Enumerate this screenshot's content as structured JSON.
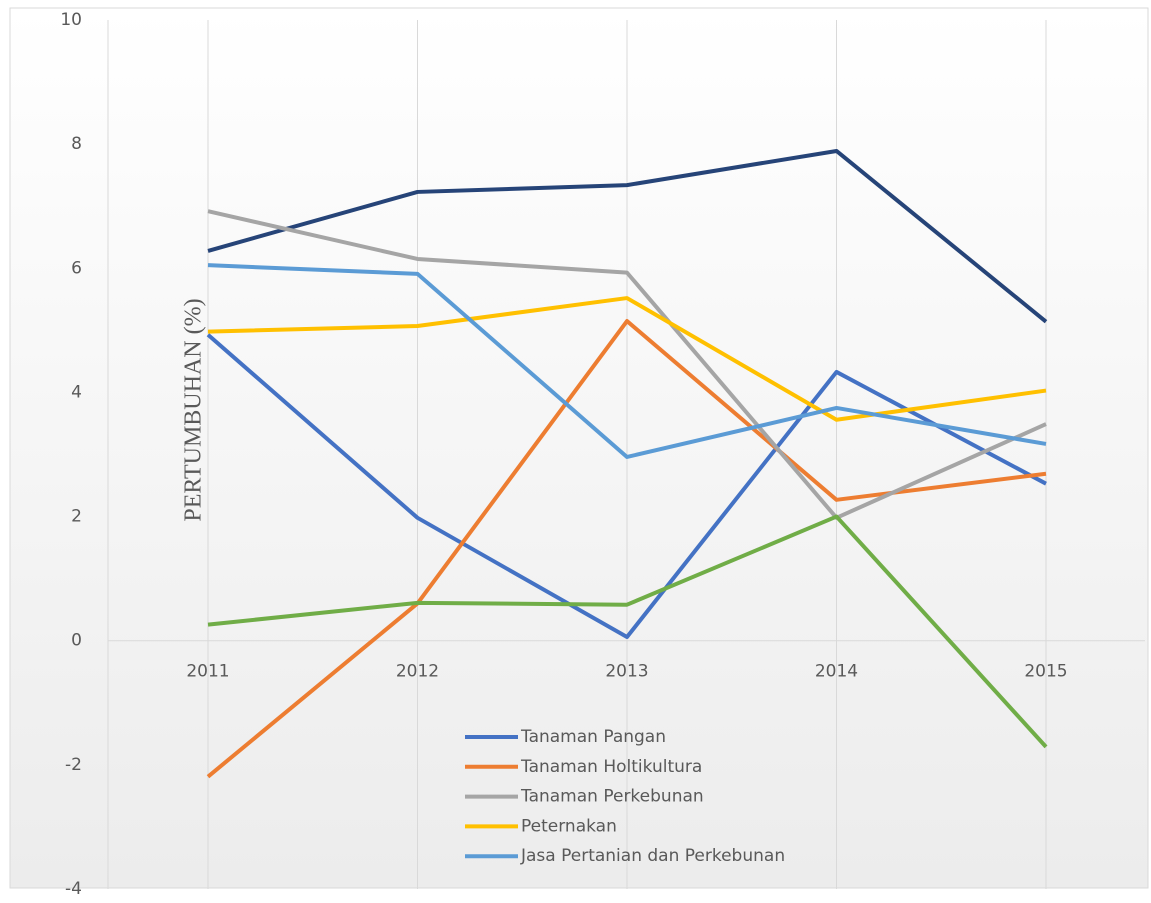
{
  "chart_data": {
    "type": "line",
    "y_label": "PERTUMBUHAN (%)",
    "categories": [
      "2011",
      "2012",
      "2013",
      "2014",
      "2015"
    ],
    "series": [
      {
        "color": "#264478",
        "values": [
          6.28,
          7.23,
          7.34,
          7.89,
          5.14
        ]
      },
      {
        "name": "Tanaman Pangan",
        "color": "#4472c4",
        "values": [
          4.93,
          1.98,
          0.06,
          4.33,
          2.53
        ]
      },
      {
        "name": "Tanaman Holtikultura",
        "color": "#ed7d31",
        "values": [
          -2.19,
          0.6,
          5.15,
          2.27,
          2.69
        ]
      },
      {
        "name": "Tanaman Perkebunan",
        "color": "#a5a5a5",
        "values": [
          6.92,
          6.15,
          5.93,
          1.98,
          3.49
        ]
      },
      {
        "name": "Peternakan",
        "color": "#ffc000",
        "values": [
          4.98,
          5.07,
          5.52,
          3.56,
          4.03
        ]
      },
      {
        "name": "Jasa Pertanian dan Perkebunan",
        "color": "#5b9bd5",
        "values": [
          6.05,
          5.91,
          2.96,
          3.75,
          3.17
        ]
      },
      {
        "color": "#70ad47",
        "values": [
          0.26,
          0.61,
          0.58,
          2.0,
          -1.71
        ]
      }
    ],
    "ylim": [
      -4,
      10
    ],
    "yticks": [
      -4,
      -2,
      0,
      2,
      4,
      6,
      8,
      10
    ],
    "grid": true
  }
}
